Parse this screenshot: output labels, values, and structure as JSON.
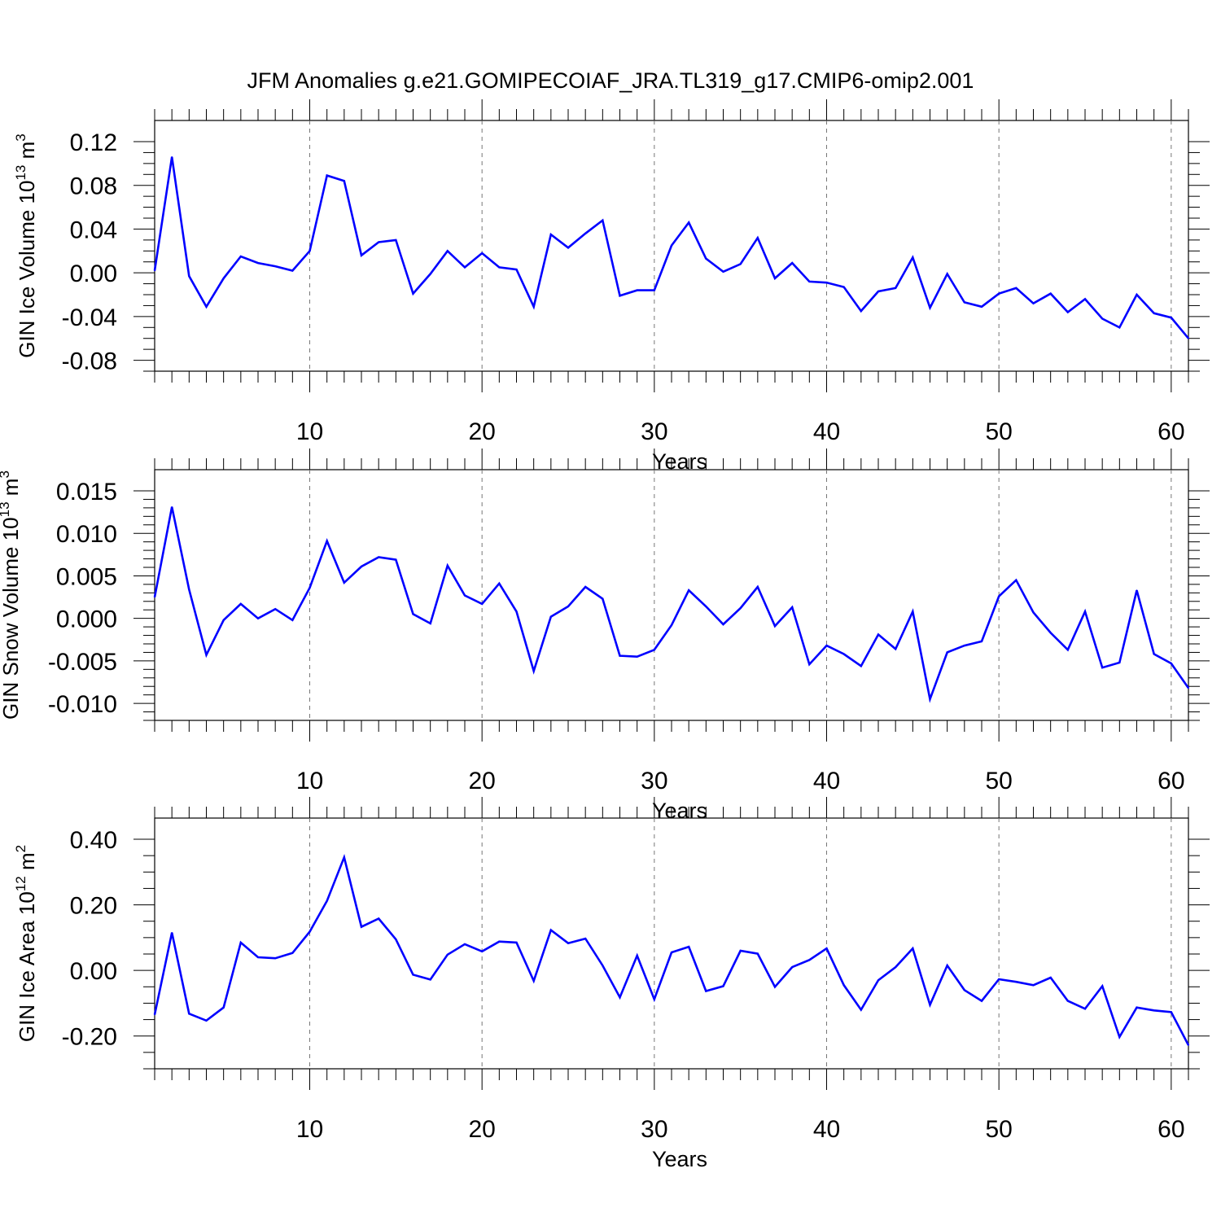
{
  "title": "JFM Anomalies g.e21.GOMIPECOIAF_JRA.TL319_g17.CMIP6-omip2.001",
  "colors": {
    "line": "#0000ff",
    "axis": "#000000",
    "grid": "#777777",
    "background": "#ffffff"
  },
  "chart_data": [
    {
      "type": "line",
      "xlabel": "Years",
      "ylabel": "GIN Ice Volume 10",
      "ylabel_sup": "13",
      "ylabel_unit": "m",
      "ylabel_unit_sup": "3",
      "xlim": [
        1,
        61
      ],
      "ylim": [
        -0.09,
        0.12
      ],
      "x_ticks": [
        10,
        20,
        30,
        40,
        50,
        60
      ],
      "x_tick_labels": [
        "10",
        "20",
        "30",
        "40",
        "50",
        "60"
      ],
      "y_ticks": [
        -0.08,
        -0.04,
        0.0,
        0.04,
        0.08,
        0.12
      ],
      "y_tick_labels": [
        "-0.08",
        "-0.04",
        "0.00",
        "0.04",
        "0.08",
        "0.12"
      ],
      "y_minor_step": 0.01,
      "grid": "vertical dashed at major x ticks",
      "series": [
        {
          "x": [
            1,
            2,
            3,
            4,
            5,
            6,
            7,
            8,
            9,
            10,
            11,
            12,
            13,
            14,
            15,
            16,
            17,
            18,
            19,
            20,
            21,
            22,
            23,
            24,
            25,
            26,
            27,
            28,
            29,
            30,
            31,
            32,
            33,
            34,
            35,
            36,
            37,
            38,
            39,
            40,
            41,
            42,
            43,
            44,
            45,
            46,
            47,
            48,
            49,
            50,
            51,
            52,
            53,
            54,
            55,
            56,
            57,
            58,
            59,
            60,
            61
          ],
          "values": [
            0.002,
            0.106,
            -0.003,
            -0.031,
            -0.005,
            0.015,
            0.009,
            0.006,
            0.002,
            0.02,
            0.089,
            0.084,
            0.016,
            0.028,
            0.03,
            -0.019,
            -0.001,
            0.02,
            0.005,
            0.018,
            0.005,
            0.003,
            -0.031,
            0.035,
            0.023,
            0.036,
            0.048,
            -0.021,
            -0.016,
            -0.016,
            0.025,
            0.046,
            0.013,
            0.001,
            0.008,
            0.032,
            -0.005,
            0.009,
            -0.008,
            -0.009,
            -0.013,
            -0.035,
            -0.017,
            -0.014,
            0.014,
            -0.032,
            -0.001,
            -0.027,
            -0.031,
            -0.019,
            -0.014,
            -0.028,
            -0.019,
            -0.036,
            -0.024,
            -0.042,
            -0.05,
            -0.02,
            -0.037,
            -0.041,
            -0.06
          ]
        }
      ]
    },
    {
      "type": "line",
      "xlabel": "Years",
      "ylabel": "GIN Snow Volume 10",
      "ylabel_sup": "13",
      "ylabel_unit": "m",
      "ylabel_unit_sup": "3",
      "xlim": [
        1,
        61
      ],
      "ylim": [
        -0.012,
        0.015
      ],
      "x_ticks": [
        10,
        20,
        30,
        40,
        50,
        60
      ],
      "x_tick_labels": [
        "10",
        "20",
        "30",
        "40",
        "50",
        "60"
      ],
      "y_ticks": [
        -0.01,
        -0.005,
        0.0,
        0.005,
        0.01,
        0.015
      ],
      "y_tick_labels": [
        "-0.010",
        "-0.005",
        "0.000",
        "0.005",
        "0.010",
        "0.015"
      ],
      "y_minor_step": 0.001,
      "grid": "vertical dashed at major x ticks",
      "series": [
        {
          "x": [
            1,
            2,
            3,
            4,
            5,
            6,
            7,
            8,
            9,
            10,
            11,
            12,
            13,
            14,
            15,
            16,
            17,
            18,
            19,
            20,
            21,
            22,
            23,
            24,
            25,
            26,
            27,
            28,
            29,
            30,
            31,
            32,
            33,
            34,
            35,
            36,
            37,
            38,
            39,
            40,
            41,
            42,
            43,
            44,
            45,
            46,
            47,
            48,
            49,
            50,
            51,
            52,
            53,
            54,
            55,
            56,
            57,
            58,
            59,
            60,
            61
          ],
          "values": [
            0.0025,
            0.0131,
            0.0034,
            -0.0043,
            -0.0002,
            0.0017,
            0.0,
            0.0011,
            -0.0002,
            0.0036,
            0.0091,
            0.0042,
            0.0061,
            0.0072,
            0.0069,
            0.0005,
            -0.0006,
            0.0062,
            0.0027,
            0.0017,
            0.0041,
            0.0008,
            -0.0062,
            0.0002,
            0.0014,
            0.0037,
            0.0023,
            -0.0044,
            -0.0045,
            -0.0037,
            -0.0008,
            0.0033,
            0.0014,
            -0.0007,
            0.0012,
            0.0037,
            -0.0009,
            0.0013,
            -0.0054,
            -0.0032,
            -0.0042,
            -0.0056,
            -0.0019,
            -0.0036,
            0.0008,
            -0.0095,
            -0.004,
            -0.0032,
            -0.0027,
            0.0026,
            0.0045,
            0.0007,
            -0.0017,
            -0.0037,
            0.0008,
            -0.0058,
            -0.0052,
            0.0033,
            -0.0042,
            -0.0053,
            -0.0082
          ]
        }
      ]
    },
    {
      "type": "line",
      "xlabel": "Years",
      "ylabel": "GIN Ice Area 10",
      "ylabel_sup": "12",
      "ylabel_unit": "m",
      "ylabel_unit_sup": "2",
      "xlim": [
        1,
        61
      ],
      "ylim": [
        -0.3,
        0.4
      ],
      "x_ticks": [
        10,
        20,
        30,
        40,
        50,
        60
      ],
      "x_tick_labels": [
        "10",
        "20",
        "30",
        "40",
        "50",
        "60"
      ],
      "y_ticks": [
        -0.2,
        0.0,
        0.2,
        0.4
      ],
      "y_tick_labels": [
        "-0.20",
        "0.00",
        "0.20",
        "0.40"
      ],
      "y_minor_step": 0.05,
      "grid": "vertical dashed at major x ticks",
      "series": [
        {
          "x": [
            1,
            2,
            3,
            4,
            5,
            6,
            7,
            8,
            9,
            10,
            11,
            12,
            13,
            14,
            15,
            16,
            17,
            18,
            19,
            20,
            21,
            22,
            23,
            24,
            25,
            26,
            27,
            28,
            29,
            30,
            31,
            32,
            33,
            34,
            35,
            36,
            37,
            38,
            39,
            40,
            41,
            42,
            43,
            44,
            45,
            46,
            47,
            48,
            49,
            50,
            51,
            52,
            53,
            54,
            55,
            56,
            57,
            58,
            59,
            60,
            61
          ],
          "values": [
            -0.135,
            0.115,
            -0.132,
            -0.153,
            -0.113,
            0.085,
            0.04,
            0.037,
            0.053,
            0.118,
            0.212,
            0.345,
            0.133,
            0.158,
            0.095,
            -0.013,
            -0.028,
            0.048,
            0.08,
            0.058,
            0.088,
            0.085,
            -0.032,
            0.123,
            0.083,
            0.097,
            0.015,
            -0.082,
            0.045,
            -0.088,
            0.055,
            0.072,
            -0.063,
            -0.048,
            0.06,
            0.051,
            -0.05,
            0.01,
            0.032,
            0.067,
            -0.045,
            -0.12,
            -0.03,
            0.01,
            0.067,
            -0.105,
            0.015,
            -0.06,
            -0.093,
            -0.027,
            -0.035,
            -0.045,
            -0.022,
            -0.093,
            -0.117,
            -0.048,
            -0.203,
            -0.113,
            -0.122,
            -0.127,
            -0.228
          ]
        }
      ]
    }
  ]
}
